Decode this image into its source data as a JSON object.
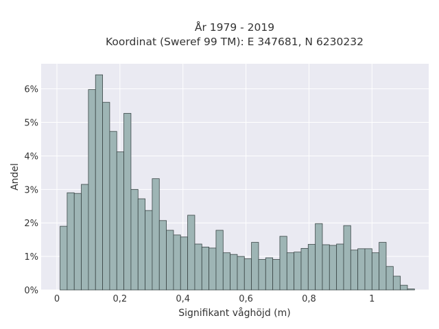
{
  "chart_data": {
    "type": "bar",
    "title_line1": "År 1979 - 2019",
    "title_line2": "Koordinat (Sweref 99 TM): E 347681, N 6230232",
    "xlabel": "Signifikant våghöjd (m)",
    "ylabel": "Andel",
    "xlim": [
      -0.05,
      1.18
    ],
    "ylim": [
      0,
      6.75
    ],
    "x_ticks": [
      0,
      0.2,
      0.4,
      0.6,
      0.8,
      1
    ],
    "x_tick_labels": [
      "0",
      "0,2",
      "0,4",
      "0,6",
      "0,8",
      "1"
    ],
    "y_ticks": [
      0,
      1,
      2,
      3,
      4,
      5,
      6
    ],
    "y_tick_labels": [
      "0%",
      "1%",
      "2%",
      "3%",
      "4%",
      "5%",
      "6%"
    ],
    "bin_start": 0.01,
    "bin_width": 0.0225,
    "values": [
      1.9,
      2.9,
      2.88,
      3.15,
      5.98,
      6.42,
      5.6,
      4.73,
      4.12,
      5.27,
      3.0,
      2.72,
      2.37,
      3.32,
      2.07,
      1.78,
      1.64,
      1.58,
      2.23,
      1.37,
      1.28,
      1.25,
      1.78,
      1.11,
      1.06,
      1.0,
      0.93,
      1.42,
      0.91,
      0.96,
      0.91,
      1.6,
      1.11,
      1.13,
      1.24,
      1.36,
      1.98,
      1.35,
      1.33,
      1.37,
      1.92,
      1.19,
      1.23,
      1.23,
      1.11,
      1.42,
      0.7,
      0.41,
      0.14,
      0.03
    ],
    "grid": true,
    "colors": {
      "bar_fill": "#9eb5b5",
      "bar_edge": "#3a4646",
      "plot_bg": "#eaeaf2",
      "grid": "#ffffff"
    }
  }
}
